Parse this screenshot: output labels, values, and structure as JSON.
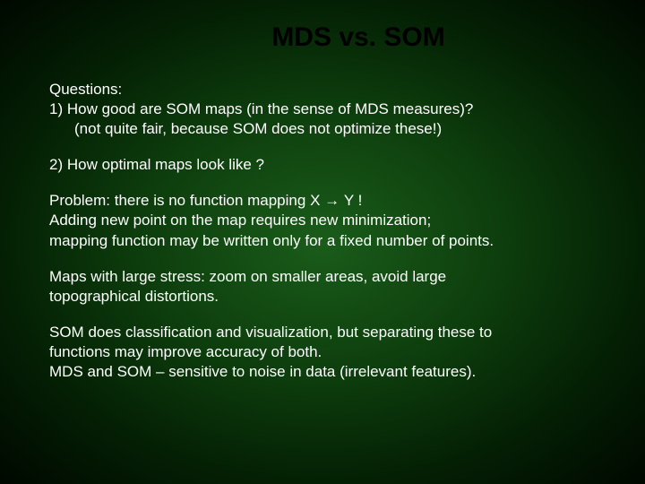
{
  "slide": {
    "title": "MDS vs. SOM",
    "background_gradient": {
      "center": "#1a5c1a",
      "mid": "#0d3d0d",
      "outer": "#042004",
      "edge": "#000800"
    },
    "title_color": "#000000",
    "text_color": "#ffffff",
    "title_fontsize": 30,
    "body_fontsize": 17,
    "paragraphs": {
      "p1_line1": "Questions:",
      "p1_line2": "1)  How good are SOM maps (in the sense of MDS measures)?",
      "p1_line3": "(not quite fair, because SOM does not optimize these!)",
      "p2": "2)  How optimal maps look like ?",
      "p3_prefix": "Problem: there is no function mapping ",
      "p3_x": "X",
      "p3_arrow": " → ",
      "p3_y": "Y",
      "p3_suffix": " !",
      "p3_line2": "Adding new point on the map requires new minimization;",
      "p3_line3": "mapping function may be written only for a fixed number of points.",
      "p4_line1": "Maps with large stress: zoom on smaller areas, avoid large",
      "p4_line2": "topographical distortions.",
      "p5_line1": "SOM does classification and visualization, but separating these to",
      "p5_line2": "functions may improve accuracy of both.",
      "p5_line3": "MDS and SOM – sensitive to noise in data (irrelevant features)."
    }
  }
}
